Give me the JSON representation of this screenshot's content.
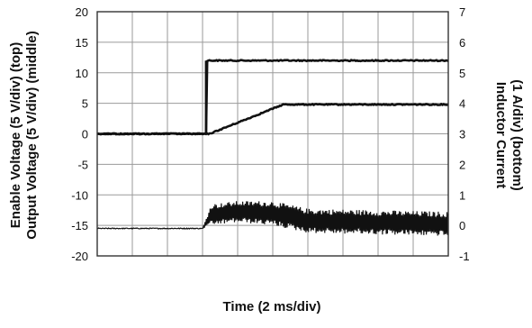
{
  "chart_data": {
    "type": "line",
    "title": "",
    "xlabel": "Time (2 ms/div)",
    "ylabel_left": [
      "Enable Voltage (5 V/div) (top)",
      "Output Voltage (5 V/div) (middle)"
    ],
    "ylabel_right": [
      "Inductor Current",
      "(1 A/div) (bottom)"
    ],
    "xlim": [
      0,
      20
    ],
    "x_divisions": 10,
    "left_axis": {
      "ylim": [
        -20,
        20
      ],
      "ticks": [
        "20",
        "15",
        "10",
        "5",
        "0",
        "-5",
        "-10",
        "-15",
        "-20"
      ]
    },
    "right_axis": {
      "ylim": [
        -1,
        7
      ],
      "ticks": [
        "7",
        "6",
        "5",
        "4",
        "3",
        "2",
        "1",
        "0",
        "-1"
      ]
    },
    "grid": true,
    "series": [
      {
        "axis": "left",
        "x": [
          0,
          6.2,
          6.2,
          20
        ],
        "y": [
          0,
          0,
          12,
          12
        ]
      },
      {
        "axis": "left",
        "x": [
          0,
          6.2,
          6.4,
          10.6,
          20
        ],
        "y": [
          0,
          0,
          0,
          4.8,
          4.8
        ]
      },
      {
        "axis": "right",
        "x": [
          0,
          6.0,
          6.5,
          8.0,
          10.0,
          12.0,
          20
        ],
        "y": [
          -0.1,
          -0.1,
          0.35,
          0.45,
          0.4,
          0.15,
          0.05
        ],
        "ripple_amplitude": [
          0,
          0,
          0.35,
          0.35,
          0.4,
          0.4,
          0.4
        ]
      }
    ]
  }
}
